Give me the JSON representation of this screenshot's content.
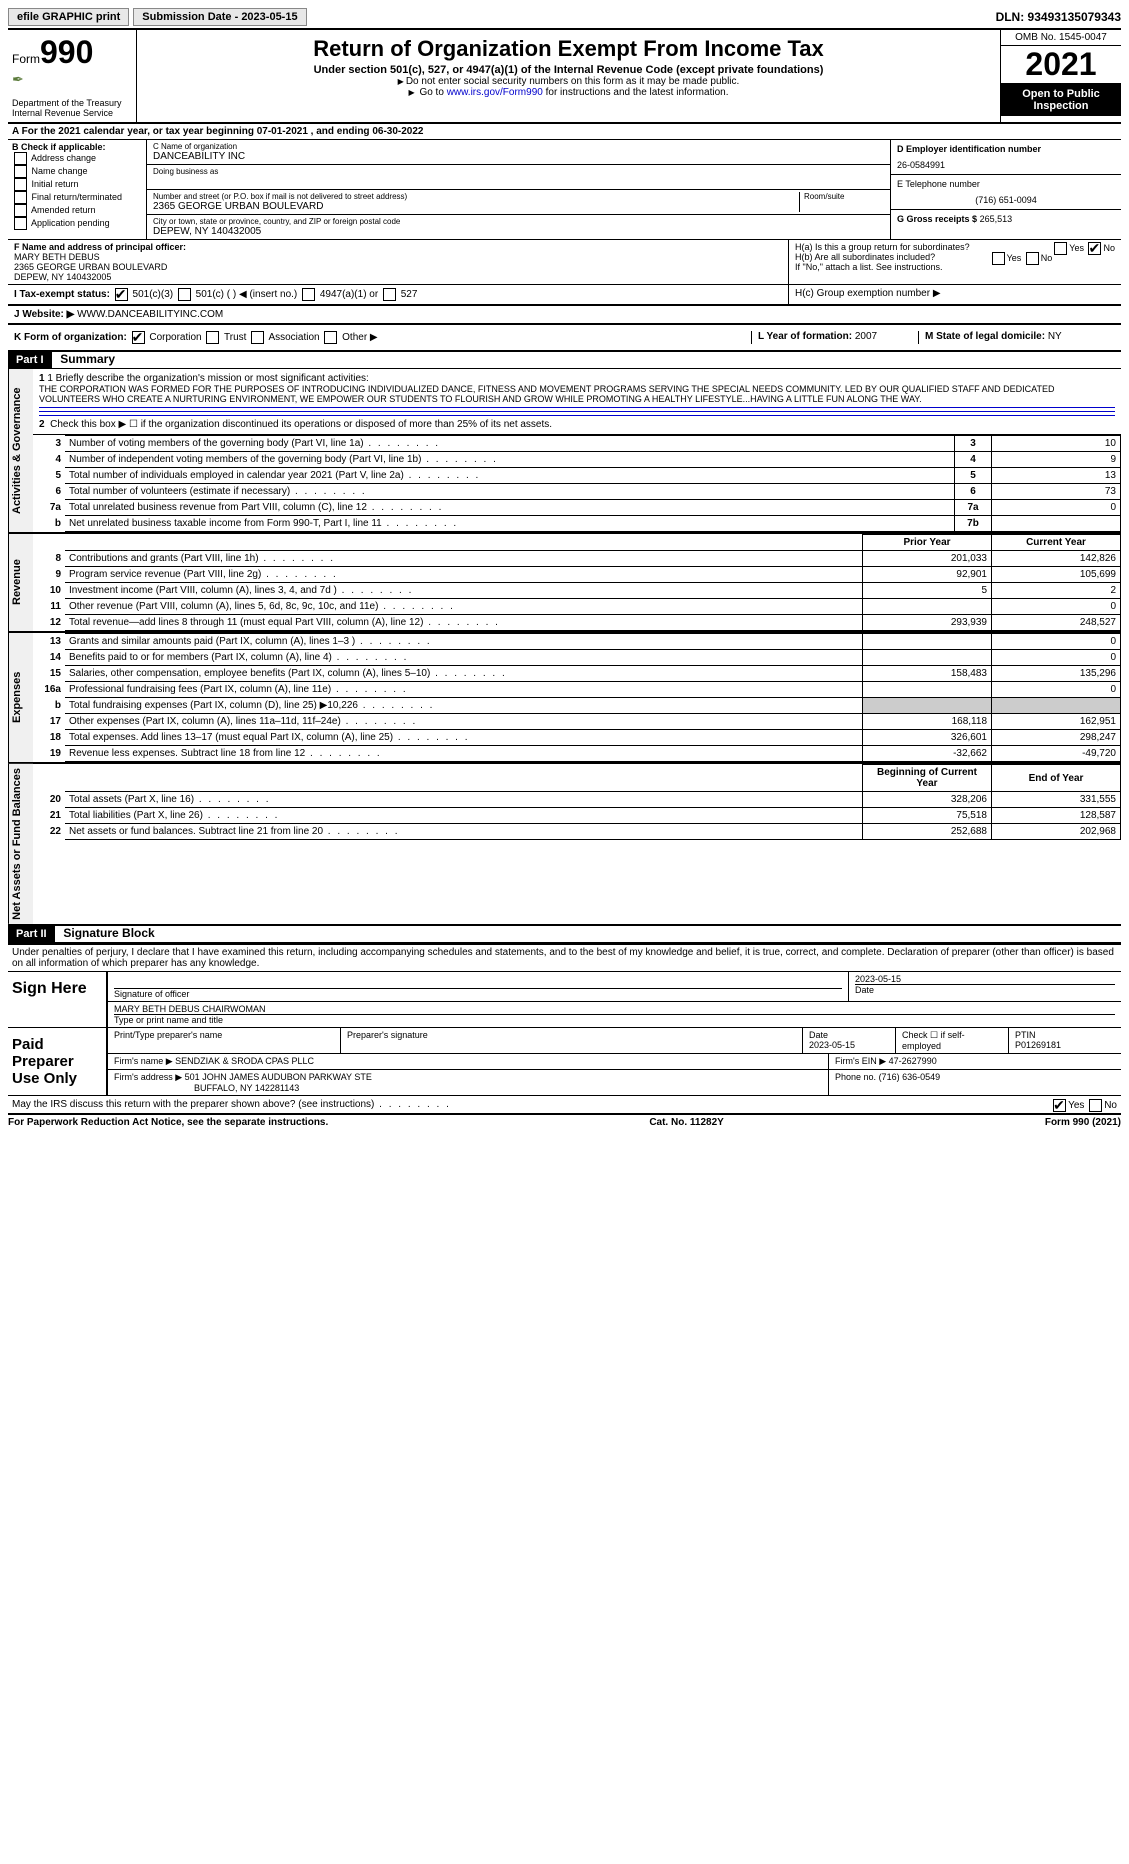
{
  "topbar": {
    "efile": "efile GRAPHIC print",
    "submission": "Submission Date - 2023-05-15",
    "dln": "DLN: 93493135079343"
  },
  "header": {
    "form_label": "Form",
    "form_no": "990",
    "dept": "Department of the Treasury",
    "irs": "Internal Revenue Service",
    "title": "Return of Organization Exempt From Income Tax",
    "subtitle": "Under section 501(c), 527, or 4947(a)(1) of the Internal Revenue Code (except private foundations)",
    "note1": "Do not enter social security numbers on this form as it may be made public.",
    "note2_pre": "Go to ",
    "note2_link": "www.irs.gov/Form990",
    "note2_post": " for instructions and the latest information.",
    "omb": "OMB No. 1545-0047",
    "year": "2021",
    "open": "Open to Public Inspection"
  },
  "line_a": "A  For the 2021 calendar year, or tax year beginning 07-01-2021    , and ending 06-30-2022",
  "b": {
    "label": "B Check if applicable:",
    "items": [
      "Address change",
      "Name change",
      "Initial return",
      "Final return/terminated",
      "Amended return",
      "Application pending"
    ]
  },
  "c": {
    "name_label": "C Name of organization",
    "name": "DANCEABILITY INC",
    "dba_label": "Doing business as",
    "addr_label": "Number and street (or P.O. box if mail is not delivered to street address)",
    "addr": "2365 GEORGE URBAN BOULEVARD",
    "room_label": "Room/suite",
    "city_label": "City or town, state or province, country, and ZIP or foreign postal code",
    "city": "DEPEW, NY  140432005"
  },
  "d": {
    "label": "D Employer identification number",
    "value": "26-0584991"
  },
  "e": {
    "label": "E Telephone number",
    "value": "(716) 651-0094"
  },
  "g": {
    "label": "G Gross receipts $",
    "value": "265,513"
  },
  "f": {
    "label": "F  Name and address of principal officer:",
    "name": "MARY BETH DEBUS",
    "addr1": "2365 GEORGE URBAN BOULEVARD",
    "addr2": "DEPEW, NY  140432005"
  },
  "h": {
    "a": "H(a)  Is this a group return for subordinates?",
    "b": "H(b)  Are all subordinates included?",
    "b_note": "If \"No,\" attach a list. See instructions.",
    "c": "H(c)  Group exemption number ▶",
    "yes": "Yes",
    "no": "No"
  },
  "i": {
    "label": "I    Tax-exempt status:",
    "opts": [
      "501(c)(3)",
      "501(c) (  ) ◀ (insert no.)",
      "4947(a)(1) or",
      "527"
    ]
  },
  "j": {
    "label": "J    Website: ▶",
    "value": "WWW.DANCEABILITYINC.COM"
  },
  "k": {
    "label": "K Form of organization:",
    "opts": [
      "Corporation",
      "Trust",
      "Association",
      "Other ▶"
    ]
  },
  "l": {
    "label": "L Year of formation:",
    "value": "2007"
  },
  "m": {
    "label": "M State of legal domicile:",
    "value": "NY"
  },
  "part1": {
    "header": "Part I",
    "title": "Summary",
    "tab_ag": "Activities & Governance",
    "tab_rev": "Revenue",
    "tab_exp": "Expenses",
    "tab_net": "Net Assets or Fund Balances",
    "q1_label": "1  Briefly describe the organization's mission or most significant activities:",
    "mission": "THE CORPORATION WAS FORMED FOR THE PURPOSES OF INTRODUCING INDIVIDUALIZED DANCE, FITNESS AND MOVEMENT PROGRAMS SERVING THE SPECIAL NEEDS COMMUNITY. LED BY OUR QUALIFIED STAFF AND DEDICATED VOLUNTEERS WHO CREATE A NURTURING ENVIRONMENT, WE EMPOWER OUR STUDENTS TO FLOURISH AND GROW WHILE PROMOTING A HEALTHY LIFESTYLE...HAVING A LITTLE FUN ALONG THE WAY.",
    "q2": "Check this box ▶ ☐  if the organization discontinued its operations or disposed of more than 25% of its net assets.",
    "rows_ag": [
      {
        "n": "3",
        "desc": "Number of voting members of the governing body (Part VI, line 1a)",
        "box": "3",
        "val": "10"
      },
      {
        "n": "4",
        "desc": "Number of independent voting members of the governing body (Part VI, line 1b)",
        "box": "4",
        "val": "9"
      },
      {
        "n": "5",
        "desc": "Total number of individuals employed in calendar year 2021 (Part V, line 2a)",
        "box": "5",
        "val": "13"
      },
      {
        "n": "6",
        "desc": "Total number of volunteers (estimate if necessary)",
        "box": "6",
        "val": "73"
      },
      {
        "n": "7a",
        "desc": "Total unrelated business revenue from Part VIII, column (C), line 12",
        "box": "7a",
        "val": "0"
      },
      {
        "n": "b",
        "desc": "Net unrelated business taxable income from Form 990-T, Part I, line 11",
        "box": "7b",
        "val": ""
      }
    ],
    "col_prior": "Prior Year",
    "col_current": "Current Year",
    "rows_rev": [
      {
        "n": "8",
        "desc": "Contributions and grants (Part VIII, line 1h)",
        "p": "201,033",
        "c": "142,826"
      },
      {
        "n": "9",
        "desc": "Program service revenue (Part VIII, line 2g)",
        "p": "92,901",
        "c": "105,699"
      },
      {
        "n": "10",
        "desc": "Investment income (Part VIII, column (A), lines 3, 4, and 7d )",
        "p": "5",
        "c": "2"
      },
      {
        "n": "11",
        "desc": "Other revenue (Part VIII, column (A), lines 5, 6d, 8c, 9c, 10c, and 11e)",
        "p": "",
        "c": "0"
      },
      {
        "n": "12",
        "desc": "Total revenue—add lines 8 through 11 (must equal Part VIII, column (A), line 12)",
        "p": "293,939",
        "c": "248,527"
      }
    ],
    "rows_exp": [
      {
        "n": "13",
        "desc": "Grants and similar amounts paid (Part IX, column (A), lines 1–3 )",
        "p": "",
        "c": "0"
      },
      {
        "n": "14",
        "desc": "Benefits paid to or for members (Part IX, column (A), line 4)",
        "p": "",
        "c": "0"
      },
      {
        "n": "15",
        "desc": "Salaries, other compensation, employee benefits (Part IX, column (A), lines 5–10)",
        "p": "158,483",
        "c": "135,296"
      },
      {
        "n": "16a",
        "desc": "Professional fundraising fees (Part IX, column (A), line 11e)",
        "p": "",
        "c": "0"
      },
      {
        "n": "b",
        "desc": "Total fundraising expenses (Part IX, column (D), line 25) ▶10,226",
        "p": "shade",
        "c": "shade"
      },
      {
        "n": "17",
        "desc": "Other expenses (Part IX, column (A), lines 11a–11d, 11f–24e)",
        "p": "168,118",
        "c": "162,951"
      },
      {
        "n": "18",
        "desc": "Total expenses. Add lines 13–17 (must equal Part IX, column (A), line 25)",
        "p": "326,601",
        "c": "298,247"
      },
      {
        "n": "19",
        "desc": "Revenue less expenses. Subtract line 18 from line 12",
        "p": "-32,662",
        "c": "-49,720"
      }
    ],
    "col_begin": "Beginning of Current Year",
    "col_end": "End of Year",
    "rows_net": [
      {
        "n": "20",
        "desc": "Total assets (Part X, line 16)",
        "p": "328,206",
        "c": "331,555"
      },
      {
        "n": "21",
        "desc": "Total liabilities (Part X, line 26)",
        "p": "75,518",
        "c": "128,587"
      },
      {
        "n": "22",
        "desc": "Net assets or fund balances. Subtract line 21 from line 20",
        "p": "252,688",
        "c": "202,968"
      }
    ]
  },
  "part2": {
    "header": "Part II",
    "title": "Signature Block",
    "perjury": "Under penalties of perjury, I declare that I have examined this return, including accompanying schedules and statements, and to the best of my knowledge and belief, it is true, correct, and complete. Declaration of preparer (other than officer) is based on all information of which preparer has any knowledge.",
    "sign_here": "Sign Here",
    "sig_officer": "Signature of officer",
    "sig_date": "2023-05-15",
    "date_label": "Date",
    "officer_name": "MARY BETH DEBUS  CHAIRWOMAN",
    "officer_label": "Type or print name and title",
    "paid": "Paid Preparer Use Only",
    "prep_name_label": "Print/Type preparer's name",
    "prep_sig_label": "Preparer's signature",
    "prep_date": "2023-05-15",
    "check_if": "Check ☐ if self-employed",
    "ptin_label": "PTIN",
    "ptin": "P01269181",
    "firm_name_label": "Firm's name    ▶",
    "firm_name": "SENDZIAK & SRODA CPAS PLLC",
    "firm_ein_label": "Firm's EIN ▶",
    "firm_ein": "47-2627990",
    "firm_addr_label": "Firm's address ▶",
    "firm_addr1": "501 JOHN JAMES AUDUBON PARKWAY STE",
    "firm_addr2": "BUFFALO, NY  142281143",
    "phone_label": "Phone no.",
    "phone": "(716) 636-0549",
    "may_irs": "May the IRS discuss this return with the preparer shown above? (see instructions)"
  },
  "footer": {
    "left": "For Paperwork Reduction Act Notice, see the separate instructions.",
    "mid": "Cat. No. 11282Y",
    "right": "Form 990 (2021)"
  }
}
